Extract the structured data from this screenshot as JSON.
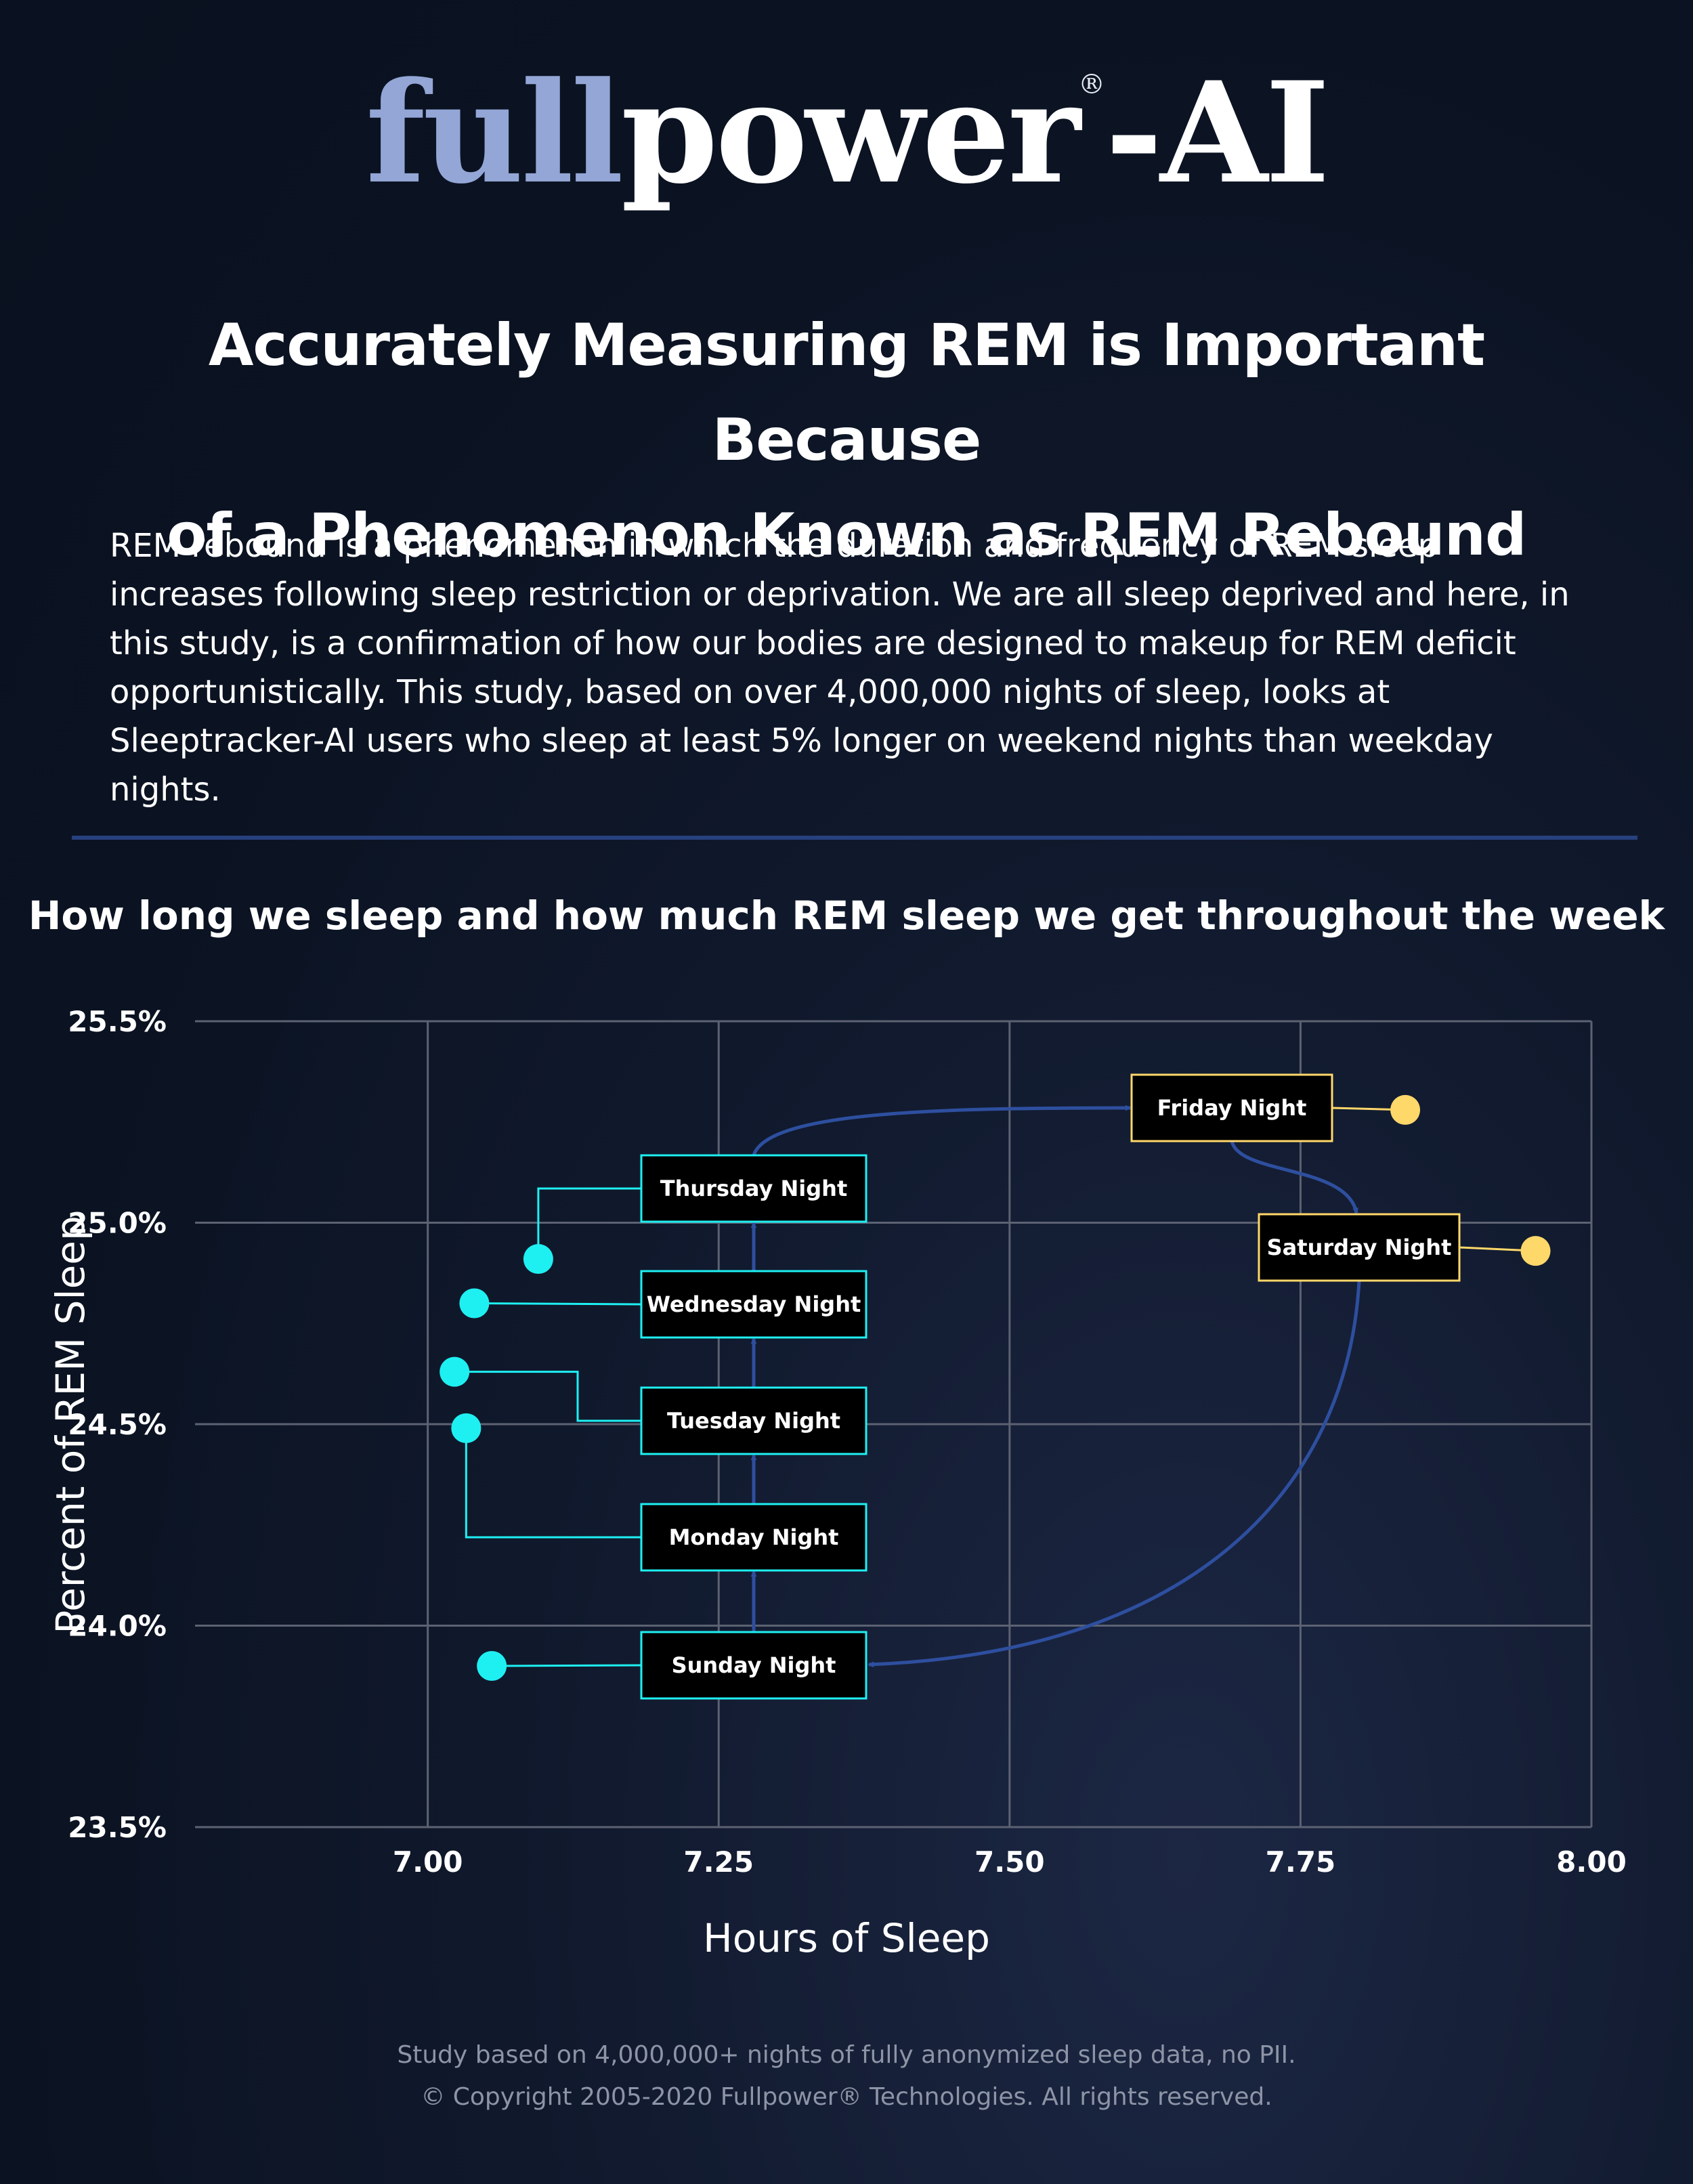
{
  "brand": {
    "logo_part1": "full",
    "logo_part2": "power",
    "logo_reg": "®",
    "logo_part3": "-AI"
  },
  "headline": {
    "line1": "Accurately Measuring REM is Important Because",
    "line2": "of a Phenomenon Known as REM Rebound"
  },
  "intro": "REM rebound is a phenomenon in which the duration and frequency of REM sleep increases following sleep restriction or deprivation. We are all sleep deprived and here, in this study, is a confirmation of how our bodies are designed to makeup for REM deficit opportunistically. This study, based on over 4,000,000 nights of sleep, looks at Sleeptracker-AI users who sleep at least 5% longer on weekend nights than weekday nights.",
  "colors": {
    "weekday": "#1ef0f2",
    "weekend": "#ffd86a",
    "arrow": "#2e4f9f",
    "divider": "#27407e"
  },
  "chart_data": {
    "type": "scatter",
    "title": "How long we sleep and how much REM sleep we get throughout the week",
    "xlabel": "Hours of Sleep",
    "ylabel": "Percent of REM Sleep",
    "xlim": [
      6.8,
      8.0
    ],
    "ylim": [
      23.5,
      25.5
    ],
    "xticks": [
      7.0,
      7.25,
      7.5,
      7.75,
      8.0
    ],
    "xtick_labels": [
      "7.00",
      "7.25",
      "7.50",
      "7.75",
      "8.00"
    ],
    "yticks": [
      23.5,
      24.0,
      24.5,
      25.0,
      25.5
    ],
    "ytick_labels": [
      "23.5%",
      "24.0%",
      "24.5%",
      "25.0%",
      "25.5%"
    ],
    "grid": true,
    "points": [
      {
        "name": "Sunday Night",
        "x": 7.055,
        "y": 23.9,
        "group": "weekday"
      },
      {
        "name": "Monday Night",
        "x": 7.033,
        "y": 24.49,
        "group": "weekday"
      },
      {
        "name": "Tuesday Night",
        "x": 7.023,
        "y": 24.63,
        "group": "weekday"
      },
      {
        "name": "Wednesday Night",
        "x": 7.04,
        "y": 24.8,
        "group": "weekday"
      },
      {
        "name": "Thursday Night",
        "x": 7.095,
        "y": 24.91,
        "group": "weekday"
      },
      {
        "name": "Friday Night",
        "x": 7.84,
        "y": 25.28,
        "group": "weekend"
      },
      {
        "name": "Saturday Night",
        "x": 7.952,
        "y": 24.93,
        "group": "weekend"
      }
    ]
  },
  "footer": {
    "line1": "Study based on 4,000,000+ nights of fully anonymized sleep data, no PII.",
    "line2": "© Copyright 2005-2020 Fullpower® Technologies. All rights reserved."
  }
}
